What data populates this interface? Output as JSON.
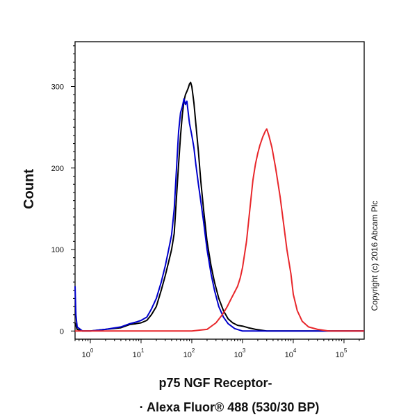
{
  "chart_data": {
    "type": "line",
    "title": "",
    "ylabel": "Count",
    "xlabel_line1": "p75 NGF Receptor-",
    "xlabel_line2": "· Alexa Fluor® 488 (530/30 BP)",
    "copyright": "Copyright (c) 2016 Abcam Plc",
    "x_scale": "log",
    "xlim": [
      0.5,
      250000
    ],
    "ylim": [
      -10,
      355
    ],
    "y_ticks": [
      {
        "value": 0,
        "label": "0"
      },
      {
        "value": 100,
        "label": "100"
      },
      {
        "value": 200,
        "label": "200"
      },
      {
        "value": 300,
        "label": "300"
      }
    ],
    "x_ticks": [
      {
        "value": 1,
        "base": "10",
        "exp": "0"
      },
      {
        "value": 10,
        "base": "10",
        "exp": "1"
      },
      {
        "value": 100,
        "base": "10",
        "exp": "2"
      },
      {
        "value": 1000,
        "base": "10",
        "exp": "3"
      },
      {
        "value": 10000,
        "base": "10",
        "exp": "4"
      },
      {
        "value": 100000,
        "base": "10",
        "exp": "5"
      }
    ],
    "grid": false,
    "legend": "none",
    "series": [
      {
        "color": "#000000",
        "points": [
          [
            0.5,
            10
          ],
          [
            0.55,
            2
          ],
          [
            0.7,
            0
          ],
          [
            1,
            0
          ],
          [
            2,
            2
          ],
          [
            4,
            4
          ],
          [
            6,
            8
          ],
          [
            8,
            9
          ],
          [
            10,
            10
          ],
          [
            13,
            13
          ],
          [
            16,
            20
          ],
          [
            20,
            30
          ],
          [
            25,
            50
          ],
          [
            30,
            68
          ],
          [
            35,
            85
          ],
          [
            40,
            100
          ],
          [
            45,
            120
          ],
          [
            50,
            165
          ],
          [
            55,
            205
          ],
          [
            60,
            240
          ],
          [
            65,
            265
          ],
          [
            70,
            282
          ],
          [
            75,
            290
          ],
          [
            80,
            294
          ],
          [
            85,
            298
          ],
          [
            90,
            303
          ],
          [
            95,
            305
          ],
          [
            100,
            300
          ],
          [
            110,
            280
          ],
          [
            120,
            255
          ],
          [
            135,
            220
          ],
          [
            150,
            185
          ],
          [
            170,
            150
          ],
          [
            200,
            110
          ],
          [
            240,
            80
          ],
          [
            280,
            60
          ],
          [
            340,
            40
          ],
          [
            420,
            25
          ],
          [
            520,
            15
          ],
          [
            640,
            10
          ],
          [
            800,
            7
          ],
          [
            1000,
            6
          ],
          [
            1300,
            4
          ],
          [
            1800,
            2
          ],
          [
            3000,
            0
          ],
          [
            250000,
            0
          ]
        ]
      },
      {
        "color": "#0000cc",
        "points": [
          [
            0.5,
            55
          ],
          [
            0.52,
            20
          ],
          [
            0.55,
            5
          ],
          [
            0.7,
            0
          ],
          [
            1,
            0
          ],
          [
            2,
            2
          ],
          [
            4,
            5
          ],
          [
            6,
            9
          ],
          [
            8,
            11
          ],
          [
            10,
            13
          ],
          [
            13,
            17
          ],
          [
            16,
            27
          ],
          [
            20,
            40
          ],
          [
            25,
            60
          ],
          [
            30,
            80
          ],
          [
            35,
            100
          ],
          [
            40,
            118
          ],
          [
            45,
            150
          ],
          [
            50,
            200
          ],
          [
            55,
            245
          ],
          [
            60,
            268
          ],
          [
            65,
            275
          ],
          [
            70,
            285
          ],
          [
            75,
            278
          ],
          [
            80,
            282
          ],
          [
            85,
            268
          ],
          [
            90,
            255
          ],
          [
            100,
            240
          ],
          [
            110,
            225
          ],
          [
            120,
            205
          ],
          [
            135,
            180
          ],
          [
            150,
            160
          ],
          [
            170,
            135
          ],
          [
            200,
            100
          ],
          [
            240,
            70
          ],
          [
            280,
            50
          ],
          [
            340,
            30
          ],
          [
            420,
            17
          ],
          [
            520,
            9
          ],
          [
            700,
            3
          ],
          [
            1000,
            0
          ],
          [
            250000,
            0
          ]
        ]
      },
      {
        "color": "#e8272b",
        "points": [
          [
            0.5,
            0
          ],
          [
            100,
            0
          ],
          [
            200,
            2
          ],
          [
            300,
            10
          ],
          [
            400,
            20
          ],
          [
            500,
            30
          ],
          [
            600,
            40
          ],
          [
            700,
            48
          ],
          [
            800,
            55
          ],
          [
            900,
            65
          ],
          [
            1000,
            78
          ],
          [
            1200,
            110
          ],
          [
            1400,
            150
          ],
          [
            1600,
            185
          ],
          [
            1800,
            205
          ],
          [
            2000,
            218
          ],
          [
            2200,
            228
          ],
          [
            2500,
            238
          ],
          [
            2800,
            245
          ],
          [
            3000,
            248
          ],
          [
            3300,
            240
          ],
          [
            3800,
            225
          ],
          [
            4500,
            200
          ],
          [
            5500,
            165
          ],
          [
            6500,
            130
          ],
          [
            7500,
            100
          ],
          [
            9000,
            70
          ],
          [
            10000,
            45
          ],
          [
            12000,
            25
          ],
          [
            15000,
            12
          ],
          [
            20000,
            5
          ],
          [
            30000,
            2
          ],
          [
            50000,
            0
          ],
          [
            250000,
            0
          ]
        ]
      }
    ]
  }
}
